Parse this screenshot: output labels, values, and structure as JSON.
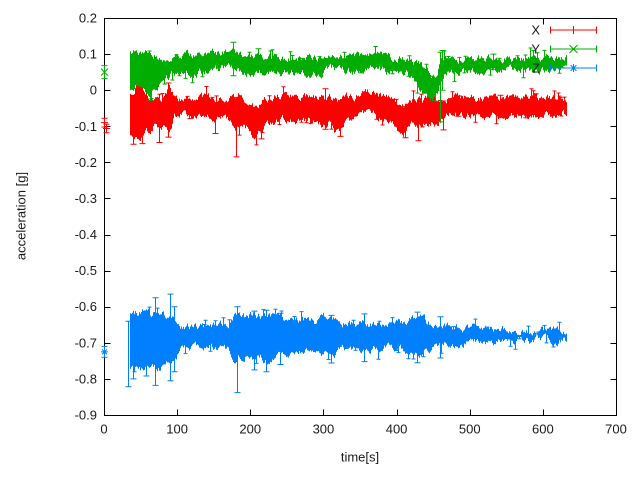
{
  "chart_data": {
    "type": "scatter",
    "subtype": "errorbars-cloud",
    "title": "",
    "xlabel": "time[s]",
    "ylabel": "acceleration [g]",
    "xlim": [
      0,
      700
    ],
    "ylim": [
      -0.9,
      0.2
    ],
    "grid": false,
    "background": "#ffffff",
    "frame_color": "#000000",
    "text_color": "#1a1a1a",
    "xticks": {
      "values": [
        0,
        100,
        200,
        300,
        400,
        500,
        600,
        700
      ],
      "labels": [
        "0",
        "100",
        "200",
        "300",
        "400",
        "500",
        "600",
        "700"
      ]
    },
    "yticks": {
      "values": [
        0.2,
        0.1,
        0,
        -0.1,
        -0.2,
        -0.3,
        -0.4,
        -0.5,
        -0.6,
        -0.7,
        -0.8,
        -0.9
      ],
      "labels": [
        "0.2",
        "0.1",
        "0",
        "-0.1",
        "-0.2",
        "-0.3",
        "-0.4",
        "-0.5",
        "-0.6",
        "-0.7",
        "-0.8",
        "-0.9"
      ]
    },
    "legend": {
      "position": "top-right",
      "entries": [
        "X",
        "Y",
        "Z"
      ]
    },
    "series": [
      {
        "name": "X",
        "color": "#ff0000",
        "marker": "plus",
        "t_start": 35,
        "t_end": 632,
        "isolated_points": [
          [
            0.5,
            -0.09,
            0.012
          ],
          [
            2.5,
            -0.106,
            0.012
          ]
        ],
        "envelope": [
          [
            35,
            -0.12,
            -0.005
          ],
          [
            40,
            -0.135,
            -0.015
          ],
          [
            44,
            -0.135,
            0.03
          ],
          [
            50,
            -0.13,
            0.03
          ],
          [
            55,
            -0.105,
            -0.005
          ],
          [
            62,
            -0.11,
            -0.02
          ],
          [
            68,
            -0.09,
            -0.02
          ],
          [
            75,
            -0.12,
            -0.03
          ],
          [
            82,
            -0.1,
            -0.02
          ],
          [
            88,
            -0.12,
            0.015
          ],
          [
            95,
            -0.075,
            -0.02
          ],
          [
            105,
            -0.062,
            -0.022
          ],
          [
            120,
            -0.07,
            -0.024
          ],
          [
            135,
            -0.075,
            -0.022
          ],
          [
            150,
            -0.085,
            -0.028
          ],
          [
            160,
            -0.075,
            -0.022
          ],
          [
            170,
            -0.08,
            -0.02
          ],
          [
            178,
            -0.1,
            -0.022
          ],
          [
            186,
            -0.092,
            -0.008
          ],
          [
            196,
            -0.105,
            -0.028
          ],
          [
            206,
            -0.128,
            -0.048
          ],
          [
            214,
            -0.112,
            -0.032
          ],
          [
            222,
            -0.092,
            -0.022
          ],
          [
            235,
            -0.086,
            -0.016
          ],
          [
            250,
            -0.08,
            -0.012
          ],
          [
            265,
            -0.085,
            -0.02
          ],
          [
            280,
            -0.08,
            -0.016
          ],
          [
            295,
            -0.09,
            -0.02
          ],
          [
            302,
            -0.105,
            -0.025
          ],
          [
            308,
            -0.072,
            -0.012
          ],
          [
            315,
            -0.11,
            -0.03
          ],
          [
            322,
            -0.118,
            -0.035
          ],
          [
            330,
            -0.082,
            -0.018
          ],
          [
            345,
            -0.076,
            -0.012
          ],
          [
            358,
            -0.066,
            -0.006
          ],
          [
            368,
            -0.07,
            -0.008
          ],
          [
            380,
            -0.078,
            -0.018
          ],
          [
            392,
            -0.092,
            -0.028
          ],
          [
            400,
            -0.11,
            -0.04
          ],
          [
            408,
            -0.122,
            -0.048
          ],
          [
            414,
            -0.105,
            -0.032
          ],
          [
            422,
            -0.092,
            -0.022
          ],
          [
            432,
            -0.096,
            -0.026
          ],
          [
            442,
            -0.092,
            -0.022
          ],
          [
            452,
            -0.088,
            -0.02
          ],
          [
            460,
            -0.082,
            -0.016
          ],
          [
            468,
            -0.07,
            -0.018
          ],
          [
            480,
            -0.066,
            -0.02
          ],
          [
            500,
            -0.067,
            -0.02
          ],
          [
            525,
            -0.07,
            -0.022
          ],
          [
            550,
            -0.071,
            -0.023
          ],
          [
            575,
            -0.069,
            -0.021
          ],
          [
            600,
            -0.068,
            -0.02
          ],
          [
            632,
            -0.068,
            -0.019
          ]
        ],
        "whiskers": [
          [
            40,
            -0.15,
            -0.06
          ],
          [
            52,
            -0.148,
            -0.05
          ],
          [
            75,
            -0.145,
            -0.05
          ],
          [
            88,
            -0.13,
            0.02
          ],
          [
            152,
            -0.12,
            -0.04
          ],
          [
            180,
            -0.185,
            -0.02
          ],
          [
            214,
            -0.135,
            -0.05
          ],
          [
            302,
            -0.108,
            0.004
          ],
          [
            322,
            -0.128,
            -0.04
          ],
          [
            412,
            -0.132,
            -0.045
          ],
          [
            429,
            -0.14,
            -0.05
          ],
          [
            463,
            -0.11,
            -0.03
          ],
          [
            484,
            -0.072,
            -0.016
          ],
          [
            541,
            -0.076,
            -0.014
          ]
        ]
      },
      {
        "name": "Y",
        "color": "#00ad00",
        "marker": "cross",
        "t_start": 35,
        "t_end": 632,
        "isolated_points": [
          [
            0.5,
            0.05,
            0.018
          ]
        ],
        "envelope": [
          [
            35,
            0.0,
            0.105
          ],
          [
            42,
            0.015,
            0.108
          ],
          [
            50,
            0.02,
            0.105
          ],
          [
            57,
            0.005,
            0.1
          ],
          [
            63,
            -0.01,
            0.095
          ],
          [
            68,
            0.015,
            0.098
          ],
          [
            75,
            0.01,
            0.095
          ],
          [
            82,
            0.025,
            0.095
          ],
          [
            90,
            0.04,
            0.096
          ],
          [
            100,
            0.048,
            0.1
          ],
          [
            112,
            0.052,
            0.1
          ],
          [
            125,
            0.048,
            0.096
          ],
          [
            140,
            0.052,
            0.1
          ],
          [
            155,
            0.058,
            0.102
          ],
          [
            168,
            0.063,
            0.108
          ],
          [
            176,
            0.06,
            0.108
          ],
          [
            185,
            0.052,
            0.1
          ],
          [
            196,
            0.048,
            0.094
          ],
          [
            208,
            0.054,
            0.1
          ],
          [
            220,
            0.048,
            0.094
          ],
          [
            235,
            0.052,
            0.094
          ],
          [
            252,
            0.048,
            0.09
          ],
          [
            270,
            0.044,
            0.088
          ],
          [
            288,
            0.048,
            0.092
          ],
          [
            302,
            0.052,
            0.096
          ],
          [
            312,
            0.06,
            0.104
          ],
          [
            322,
            0.054,
            0.098
          ],
          [
            338,
            0.048,
            0.092
          ],
          [
            352,
            0.054,
            0.094
          ],
          [
            365,
            0.058,
            0.1
          ],
          [
            378,
            0.054,
            0.098
          ],
          [
            392,
            0.05,
            0.094
          ],
          [
            405,
            0.046,
            0.09
          ],
          [
            415,
            0.042,
            0.086
          ],
          [
            424,
            0.028,
            0.08
          ],
          [
            432,
            0.002,
            0.068
          ],
          [
            440,
            -0.012,
            0.048
          ],
          [
            448,
            -0.022,
            0.038
          ],
          [
            454,
            -0.012,
            0.046
          ],
          [
            459,
            0.025,
            0.075
          ],
          [
            464,
            0.048,
            0.086
          ],
          [
            472,
            0.054,
            0.087
          ],
          [
            495,
            0.056,
            0.088
          ],
          [
            520,
            0.054,
            0.086
          ],
          [
            545,
            0.056,
            0.088
          ],
          [
            575,
            0.056,
            0.088
          ],
          [
            605,
            0.057,
            0.089
          ],
          [
            632,
            0.056,
            0.089
          ]
        ],
        "whiskers": [
          [
            63,
            -0.028,
            0.03
          ],
          [
            176,
            0.04,
            0.133
          ],
          [
            210,
            0.06,
            0.115
          ],
          [
            459,
            -0.088,
            0.105
          ],
          [
            462,
            0.0,
            0.11
          ],
          [
            532,
            0.058,
            0.1
          ]
        ]
      },
      {
        "name": "Z",
        "color": "#0080ff",
        "marker": "asterisk",
        "t_start": 35,
        "t_end": 632,
        "isolated_points": [
          [
            0.5,
            -0.725,
            0.015
          ]
        ],
        "envelope": [
          [
            35,
            -0.77,
            -0.625
          ],
          [
            45,
            -0.765,
            -0.618
          ],
          [
            55,
            -0.775,
            -0.615
          ],
          [
            65,
            -0.76,
            -0.62
          ],
          [
            75,
            -0.77,
            -0.615
          ],
          [
            85,
            -0.755,
            -0.625
          ],
          [
            95,
            -0.742,
            -0.632
          ],
          [
            105,
            -0.72,
            -0.648
          ],
          [
            118,
            -0.712,
            -0.655
          ],
          [
            132,
            -0.712,
            -0.657
          ],
          [
            146,
            -0.71,
            -0.655
          ],
          [
            160,
            -0.715,
            -0.652
          ],
          [
            170,
            -0.722,
            -0.645
          ],
          [
            178,
            -0.748,
            -0.622
          ],
          [
            186,
            -0.74,
            -0.62
          ],
          [
            196,
            -0.73,
            -0.63
          ],
          [
            205,
            -0.75,
            -0.618
          ],
          [
            214,
            -0.74,
            -0.628
          ],
          [
            222,
            -0.755,
            -0.622
          ],
          [
            232,
            -0.732,
            -0.633
          ],
          [
            245,
            -0.722,
            -0.638
          ],
          [
            260,
            -0.726,
            -0.634
          ],
          [
            275,
            -0.72,
            -0.64
          ],
          [
            290,
            -0.716,
            -0.644
          ],
          [
            303,
            -0.73,
            -0.63
          ],
          [
            312,
            -0.736,
            -0.626
          ],
          [
            325,
            -0.72,
            -0.644
          ],
          [
            340,
            -0.714,
            -0.647
          ],
          [
            355,
            -0.72,
            -0.644
          ],
          [
            370,
            -0.714,
            -0.648
          ],
          [
            385,
            -0.712,
            -0.65
          ],
          [
            400,
            -0.714,
            -0.648
          ],
          [
            414,
            -0.724,
            -0.636
          ],
          [
            428,
            -0.736,
            -0.624
          ],
          [
            440,
            -0.72,
            -0.643
          ],
          [
            455,
            -0.71,
            -0.65
          ],
          [
            470,
            -0.705,
            -0.654
          ],
          [
            490,
            -0.7,
            -0.657
          ],
          [
            510,
            -0.699,
            -0.659
          ],
          [
            530,
            -0.697,
            -0.661
          ],
          [
            552,
            -0.696,
            -0.662
          ],
          [
            575,
            -0.694,
            -0.664
          ],
          [
            598,
            -0.693,
            -0.666
          ],
          [
            615,
            -0.692,
            -0.667
          ],
          [
            632,
            -0.691,
            -0.668
          ]
        ],
        "whiskers": [
          [
            33,
            -0.822,
            -0.64
          ],
          [
            40,
            -0.8,
            -0.63
          ],
          [
            58,
            -0.792,
            -0.618
          ],
          [
            70,
            -0.818,
            -0.575
          ],
          [
            90,
            -0.805,
            -0.565
          ],
          [
            96,
            -0.78,
            -0.6
          ],
          [
            182,
            -0.838,
            -0.6
          ],
          [
            205,
            -0.775,
            -0.612
          ],
          [
            222,
            -0.78,
            -0.61
          ],
          [
            240,
            -0.76,
            -0.618
          ],
          [
            310,
            -0.756,
            -0.624
          ],
          [
            355,
            -0.752,
            -0.62
          ],
          [
            428,
            -0.755,
            -0.615
          ],
          [
            460,
            -0.742,
            -0.628
          ]
        ]
      }
    ]
  }
}
